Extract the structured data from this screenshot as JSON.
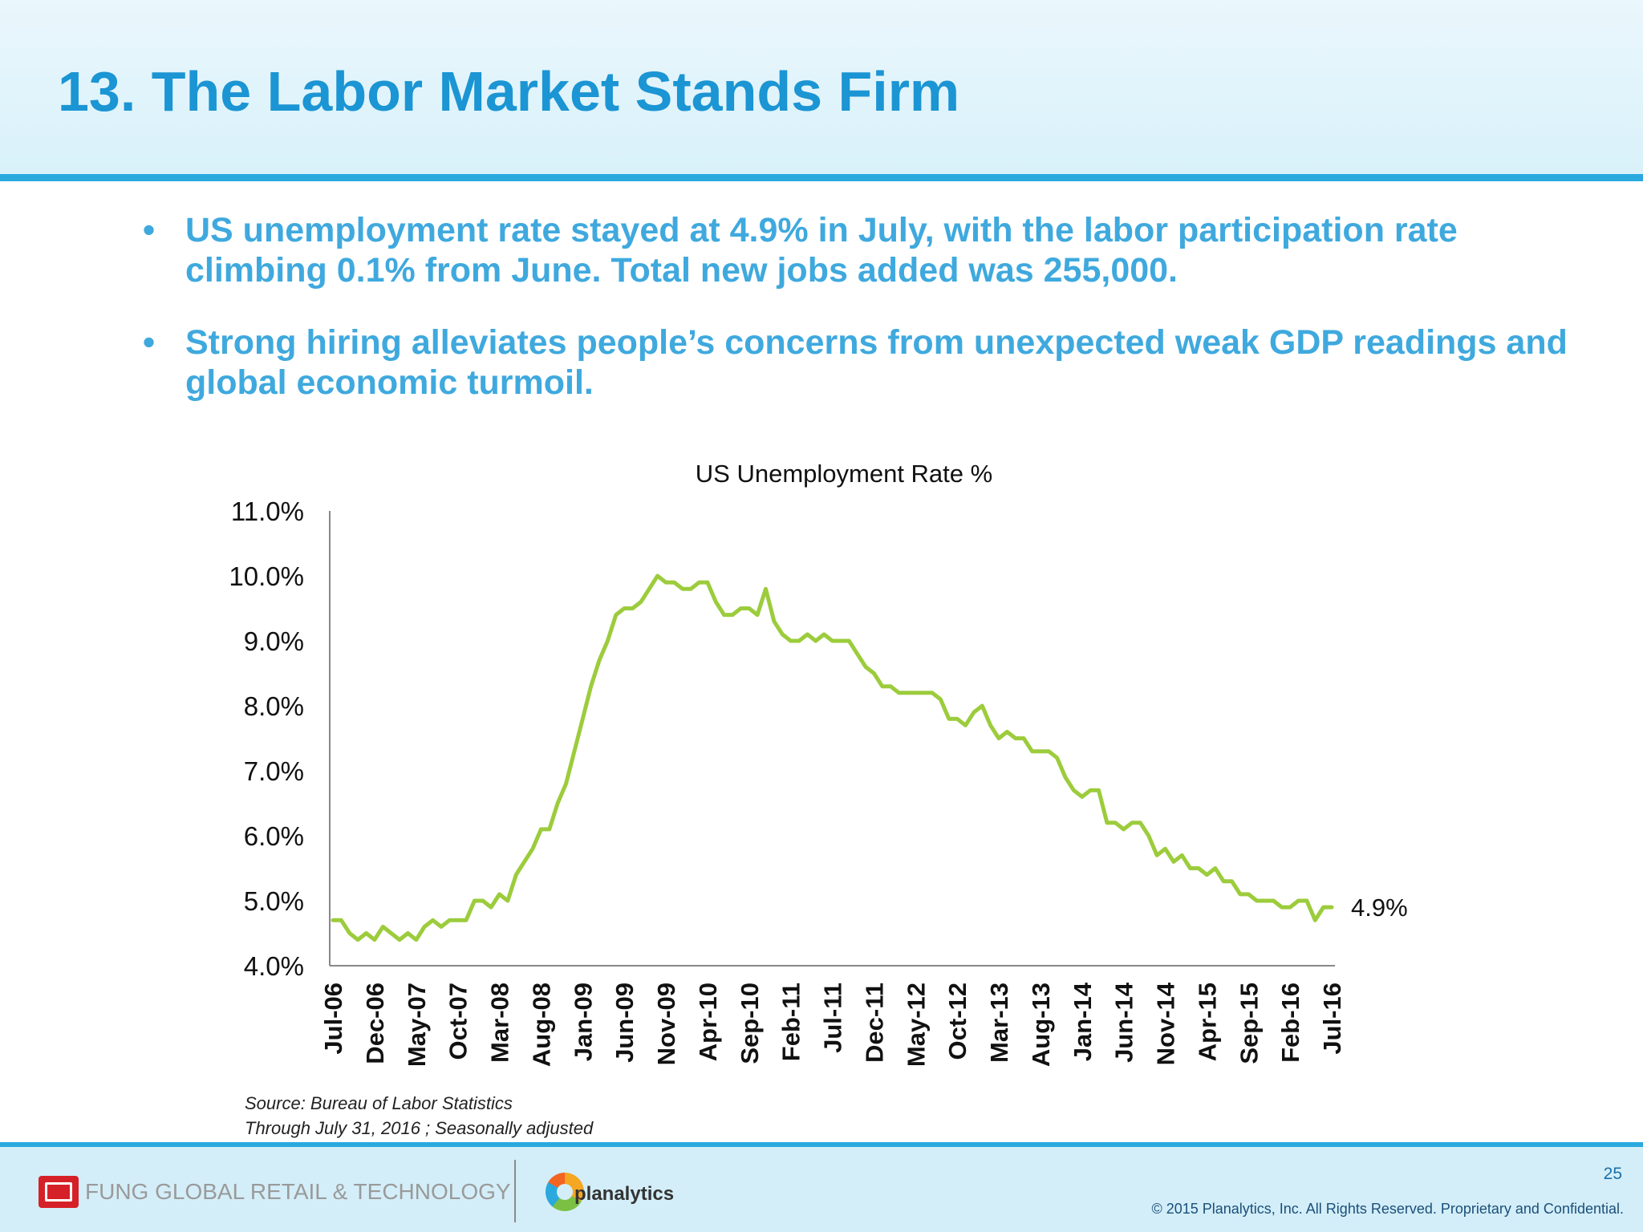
{
  "slide": {
    "title": "13. The Labor Market  Stands Firm",
    "bullets": [
      {
        "marker": "•",
        "text": "US unemployment rate stayed at 4.9% in July, with the labor participation rate climbing 0.1% from June. Total new jobs added was 255,000."
      },
      {
        "marker": "•",
        "text": "Strong hiring alleviates people’s concerns from unexpected weak GDP readings and global economic turmoil."
      }
    ],
    "source_line1": "Source: Bureau of Labor Statistics",
    "source_line2": "Through July 31, 2016 ; Seasonally adjusted"
  },
  "footer": {
    "company": "FUNG GLOBAL RETAIL & TECHNOLOGY",
    "partner": "planalytics",
    "page_number": "25",
    "copyright": "© 2015 Planalytics, Inc. All Rights Reserved. Proprietary and Confidential."
  },
  "colors": {
    "title": "#1b95d3",
    "bullet_text": "#3fa9de",
    "rule": "#2aa9df",
    "series_line": "#9ccc3c",
    "axis": "#888888"
  },
  "chart_data": {
    "type": "line",
    "title": "US Unemployment Rate %",
    "xlabel": "",
    "ylabel": "",
    "ylim": [
      4.0,
      11.0
    ],
    "y_ticks": [
      "4.0%",
      "5.0%",
      "6.0%",
      "7.0%",
      "8.0%",
      "9.0%",
      "10.0%",
      "11.0%"
    ],
    "x_tick_labels": [
      "Jul-06",
      "Dec-06",
      "May-07",
      "Oct-07",
      "Mar-08",
      "Aug-08",
      "Jan-09",
      "Jun-09",
      "Nov-09",
      "Apr-10",
      "Sep-10",
      "Feb-11",
      "Jul-11",
      "Dec-11",
      "May-12",
      "Oct-12",
      "Mar-13",
      "Aug-13",
      "Jan-14",
      "Jun-14",
      "Nov-14",
      "Apr-15",
      "Sep-15",
      "Feb-16",
      "Jul-16"
    ],
    "x_start": "Jul-06",
    "x_end": "Jul-16",
    "frequency": "monthly",
    "end_label": "4.9%",
    "series": [
      {
        "name": "US Unemployment Rate",
        "values": [
          4.7,
          4.7,
          4.5,
          4.4,
          4.5,
          4.4,
          4.6,
          4.5,
          4.4,
          4.5,
          4.4,
          4.6,
          4.7,
          4.6,
          4.7,
          4.7,
          4.7,
          5.0,
          5.0,
          4.9,
          5.1,
          5.0,
          5.4,
          5.6,
          5.8,
          6.1,
          6.1,
          6.5,
          6.8,
          7.3,
          7.8,
          8.3,
          8.7,
          9.0,
          9.4,
          9.5,
          9.5,
          9.6,
          9.8,
          10.0,
          9.9,
          9.9,
          9.8,
          9.8,
          9.9,
          9.9,
          9.6,
          9.4,
          9.4,
          9.5,
          9.5,
          9.4,
          9.8,
          9.3,
          9.1,
          9.0,
          9.0,
          9.1,
          9.0,
          9.1,
          9.0,
          9.0,
          9.0,
          8.8,
          8.6,
          8.5,
          8.3,
          8.3,
          8.2,
          8.2,
          8.2,
          8.2,
          8.2,
          8.1,
          7.8,
          7.8,
          7.7,
          7.9,
          8.0,
          7.7,
          7.5,
          7.6,
          7.5,
          7.5,
          7.3,
          7.3,
          7.3,
          7.2,
          6.9,
          6.7,
          6.6,
          6.7,
          6.7,
          6.2,
          6.2,
          6.1,
          6.2,
          6.2,
          6.0,
          5.7,
          5.8,
          5.6,
          5.7,
          5.5,
          5.5,
          5.4,
          5.5,
          5.3,
          5.3,
          5.1,
          5.1,
          5.0,
          5.0,
          5.0,
          4.9,
          4.9,
          5.0,
          5.0,
          4.7,
          4.9,
          4.9
        ]
      }
    ]
  }
}
